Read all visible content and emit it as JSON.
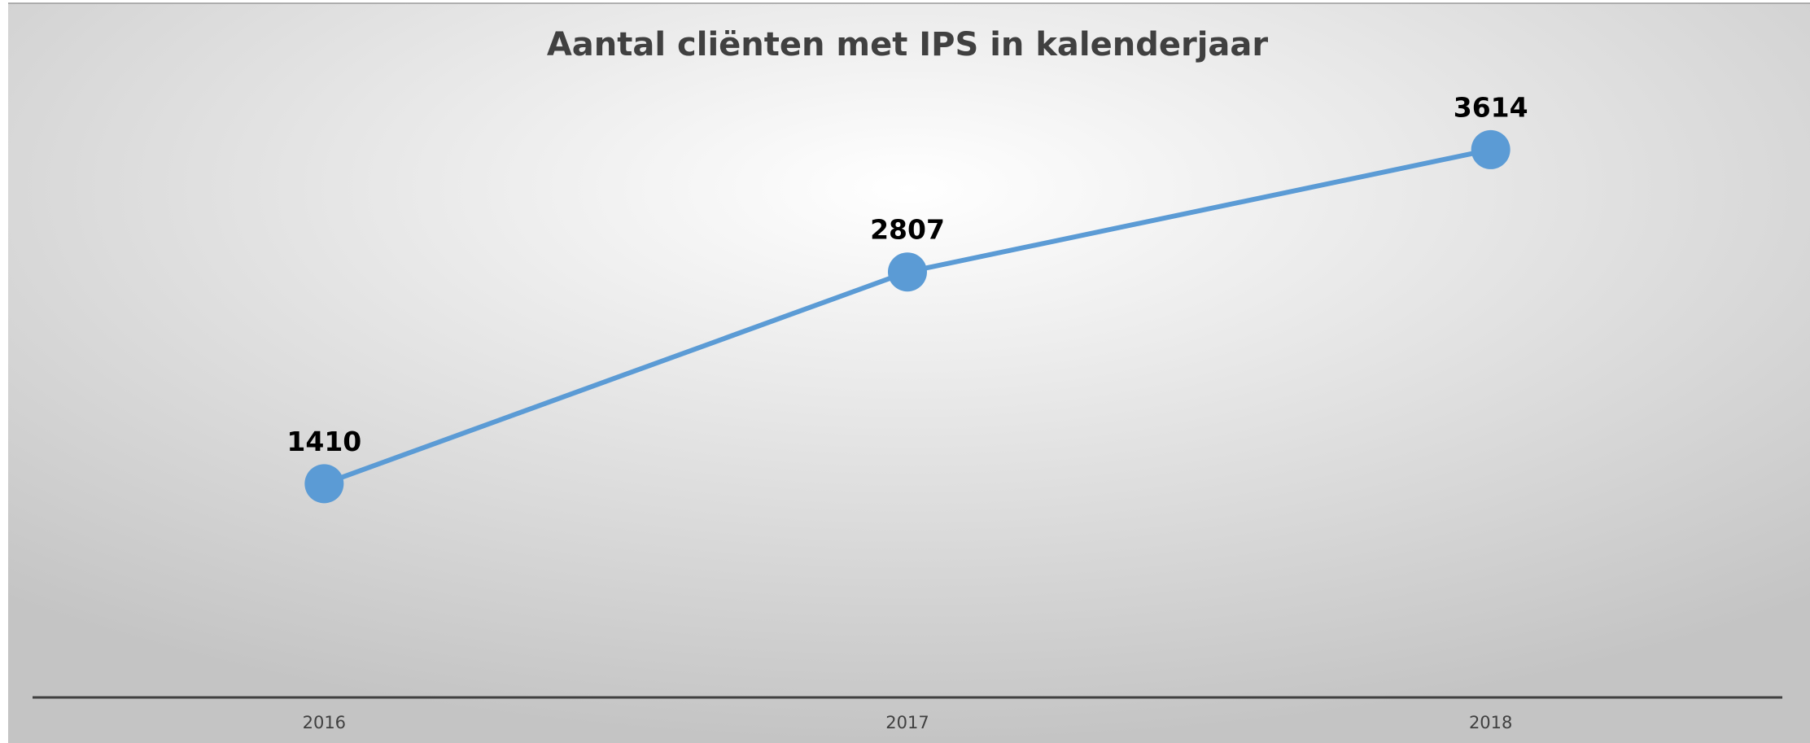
{
  "chart_data": {
    "type": "line",
    "title": "Aantal cliënten met IPS in kalenderjaar",
    "categories": [
      "2016",
      "2017",
      "2018"
    ],
    "series": [
      {
        "name": "Aantal cliënten",
        "color": "#5b9bd5",
        "values": [
          1410,
          2807,
          3614
        ]
      }
    ],
    "ylim": [
      0,
      4000
    ]
  }
}
